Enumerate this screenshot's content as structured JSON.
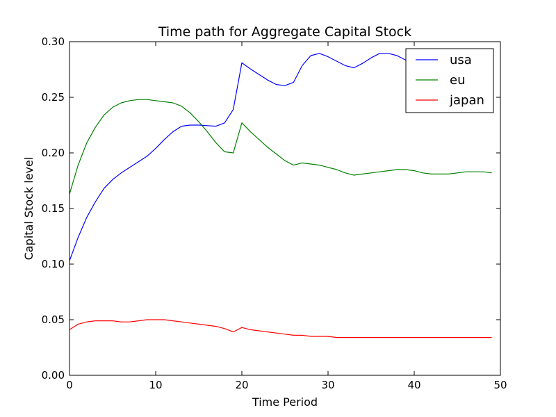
{
  "chart_data": {
    "type": "line",
    "title": "Time path for Aggregate Capital Stock",
    "xlabel": "Time Period",
    "ylabel": "Capital Stock level",
    "xlim": [
      0,
      50
    ],
    "ylim": [
      0,
      0.3
    ],
    "xticks": [
      0,
      10,
      20,
      30,
      40,
      50
    ],
    "xtick_labels": [
      "0",
      "10",
      "20",
      "30",
      "40",
      "50"
    ],
    "yticks": [
      0,
      0.05,
      0.1,
      0.15,
      0.2,
      0.25,
      0.3
    ],
    "ytick_labels": [
      "0.00",
      "0.05",
      "0.10",
      "0.15",
      "0.20",
      "0.25",
      "0.30"
    ],
    "grid": false,
    "legend_position": "top-right",
    "x": [
      0,
      1,
      2,
      3,
      4,
      5,
      6,
      7,
      8,
      9,
      10,
      11,
      12,
      13,
      14,
      15,
      16,
      17,
      18,
      19,
      20,
      21,
      22,
      23,
      24,
      25,
      26,
      27,
      28,
      29,
      30,
      31,
      32,
      33,
      34,
      35,
      36,
      37,
      38,
      39,
      40,
      41,
      42,
      43,
      44,
      45,
      46,
      47,
      48,
      49
    ],
    "series": [
      {
        "name": "usa",
        "color": "#0000ff",
        "values": [
          0.103,
          0.124,
          0.142,
          0.156,
          0.168,
          0.176,
          0.182,
          0.187,
          0.192,
          0.197,
          0.204,
          0.212,
          0.219,
          0.224,
          0.225,
          0.225,
          0.2245,
          0.224,
          0.227,
          0.239,
          0.281,
          0.2755,
          0.2705,
          0.2655,
          0.2615,
          0.2605,
          0.2635,
          0.2785,
          0.2875,
          0.2895,
          0.2865,
          0.2825,
          0.2785,
          0.2765,
          0.2805,
          0.2855,
          0.2895,
          0.2895,
          0.2875,
          0.2835,
          0.2815,
          0.2805,
          0.2805,
          0.2815,
          0.2825,
          0.2835,
          0.2845,
          0.2855,
          0.2845,
          0.284
        ]
      },
      {
        "name": "eu",
        "color": "#008000",
        "values": [
          0.163,
          0.189,
          0.209,
          0.223,
          0.234,
          0.241,
          0.245,
          0.247,
          0.248,
          0.248,
          0.247,
          0.246,
          0.245,
          0.242,
          0.236,
          0.228,
          0.219,
          0.209,
          0.201,
          0.2,
          0.227,
          0.219,
          0.212,
          0.205,
          0.199,
          0.193,
          0.189,
          0.191,
          0.19,
          0.189,
          0.187,
          0.185,
          0.182,
          0.18,
          0.181,
          0.182,
          0.183,
          0.184,
          0.185,
          0.185,
          0.184,
          0.182,
          0.181,
          0.181,
          0.181,
          0.182,
          0.183,
          0.183,
          0.183,
          0.182
        ]
      },
      {
        "name": "japan",
        "color": "#ff0000",
        "values": [
          0.041,
          0.046,
          0.048,
          0.049,
          0.049,
          0.049,
          0.048,
          0.048,
          0.049,
          0.05,
          0.05,
          0.05,
          0.049,
          0.048,
          0.047,
          0.046,
          0.045,
          0.044,
          0.042,
          0.039,
          0.043,
          0.041,
          0.04,
          0.039,
          0.038,
          0.037,
          0.036,
          0.036,
          0.035,
          0.035,
          0.035,
          0.034,
          0.034,
          0.034,
          0.034,
          0.034,
          0.034,
          0.034,
          0.034,
          0.034,
          0.034,
          0.034,
          0.034,
          0.034,
          0.034,
          0.034,
          0.034,
          0.034,
          0.034,
          0.034
        ]
      }
    ]
  }
}
